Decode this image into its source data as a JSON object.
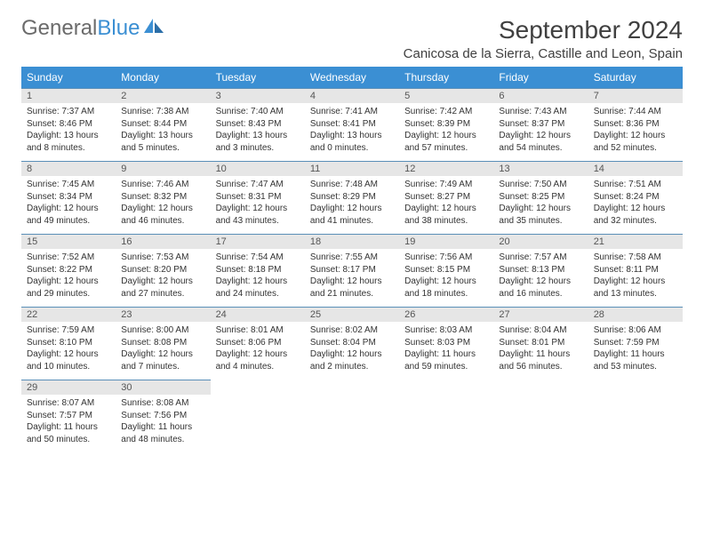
{
  "brand": {
    "part1": "General",
    "part2": "Blue"
  },
  "title": "September 2024",
  "location": "Canicosa de la Sierra, Castille and Leon, Spain",
  "colors": {
    "header_bg": "#3b8fd3",
    "header_text": "#ffffff",
    "daynum_bg": "#e6e6e6",
    "row_border": "#5a8fb8",
    "text": "#333333",
    "title_text": "#404040"
  },
  "weekdays": [
    "Sunday",
    "Monday",
    "Tuesday",
    "Wednesday",
    "Thursday",
    "Friday",
    "Saturday"
  ],
  "days": [
    {
      "n": "1",
      "sr": "7:37 AM",
      "ss": "8:46 PM",
      "dl": "13 hours and 8 minutes."
    },
    {
      "n": "2",
      "sr": "7:38 AM",
      "ss": "8:44 PM",
      "dl": "13 hours and 5 minutes."
    },
    {
      "n": "3",
      "sr": "7:40 AM",
      "ss": "8:43 PM",
      "dl": "13 hours and 3 minutes."
    },
    {
      "n": "4",
      "sr": "7:41 AM",
      "ss": "8:41 PM",
      "dl": "13 hours and 0 minutes."
    },
    {
      "n": "5",
      "sr": "7:42 AM",
      "ss": "8:39 PM",
      "dl": "12 hours and 57 minutes."
    },
    {
      "n": "6",
      "sr": "7:43 AM",
      "ss": "8:37 PM",
      "dl": "12 hours and 54 minutes."
    },
    {
      "n": "7",
      "sr": "7:44 AM",
      "ss": "8:36 PM",
      "dl": "12 hours and 52 minutes."
    },
    {
      "n": "8",
      "sr": "7:45 AM",
      "ss": "8:34 PM",
      "dl": "12 hours and 49 minutes."
    },
    {
      "n": "9",
      "sr": "7:46 AM",
      "ss": "8:32 PM",
      "dl": "12 hours and 46 minutes."
    },
    {
      "n": "10",
      "sr": "7:47 AM",
      "ss": "8:31 PM",
      "dl": "12 hours and 43 minutes."
    },
    {
      "n": "11",
      "sr": "7:48 AM",
      "ss": "8:29 PM",
      "dl": "12 hours and 41 minutes."
    },
    {
      "n": "12",
      "sr": "7:49 AM",
      "ss": "8:27 PM",
      "dl": "12 hours and 38 minutes."
    },
    {
      "n": "13",
      "sr": "7:50 AM",
      "ss": "8:25 PM",
      "dl": "12 hours and 35 minutes."
    },
    {
      "n": "14",
      "sr": "7:51 AM",
      "ss": "8:24 PM",
      "dl": "12 hours and 32 minutes."
    },
    {
      "n": "15",
      "sr": "7:52 AM",
      "ss": "8:22 PM",
      "dl": "12 hours and 29 minutes."
    },
    {
      "n": "16",
      "sr": "7:53 AM",
      "ss": "8:20 PM",
      "dl": "12 hours and 27 minutes."
    },
    {
      "n": "17",
      "sr": "7:54 AM",
      "ss": "8:18 PM",
      "dl": "12 hours and 24 minutes."
    },
    {
      "n": "18",
      "sr": "7:55 AM",
      "ss": "8:17 PM",
      "dl": "12 hours and 21 minutes."
    },
    {
      "n": "19",
      "sr": "7:56 AM",
      "ss": "8:15 PM",
      "dl": "12 hours and 18 minutes."
    },
    {
      "n": "20",
      "sr": "7:57 AM",
      "ss": "8:13 PM",
      "dl": "12 hours and 16 minutes."
    },
    {
      "n": "21",
      "sr": "7:58 AM",
      "ss": "8:11 PM",
      "dl": "12 hours and 13 minutes."
    },
    {
      "n": "22",
      "sr": "7:59 AM",
      "ss": "8:10 PM",
      "dl": "12 hours and 10 minutes."
    },
    {
      "n": "23",
      "sr": "8:00 AM",
      "ss": "8:08 PM",
      "dl": "12 hours and 7 minutes."
    },
    {
      "n": "24",
      "sr": "8:01 AM",
      "ss": "8:06 PM",
      "dl": "12 hours and 4 minutes."
    },
    {
      "n": "25",
      "sr": "8:02 AM",
      "ss": "8:04 PM",
      "dl": "12 hours and 2 minutes."
    },
    {
      "n": "26",
      "sr": "8:03 AM",
      "ss": "8:03 PM",
      "dl": "11 hours and 59 minutes."
    },
    {
      "n": "27",
      "sr": "8:04 AM",
      "ss": "8:01 PM",
      "dl": "11 hours and 56 minutes."
    },
    {
      "n": "28",
      "sr": "8:06 AM",
      "ss": "7:59 PM",
      "dl": "11 hours and 53 minutes."
    },
    {
      "n": "29",
      "sr": "8:07 AM",
      "ss": "7:57 PM",
      "dl": "11 hours and 50 minutes."
    },
    {
      "n": "30",
      "sr": "8:08 AM",
      "ss": "7:56 PM",
      "dl": "11 hours and 48 minutes."
    }
  ],
  "labels": {
    "sunrise": "Sunrise:",
    "sunset": "Sunset:",
    "daylight": "Daylight:"
  }
}
